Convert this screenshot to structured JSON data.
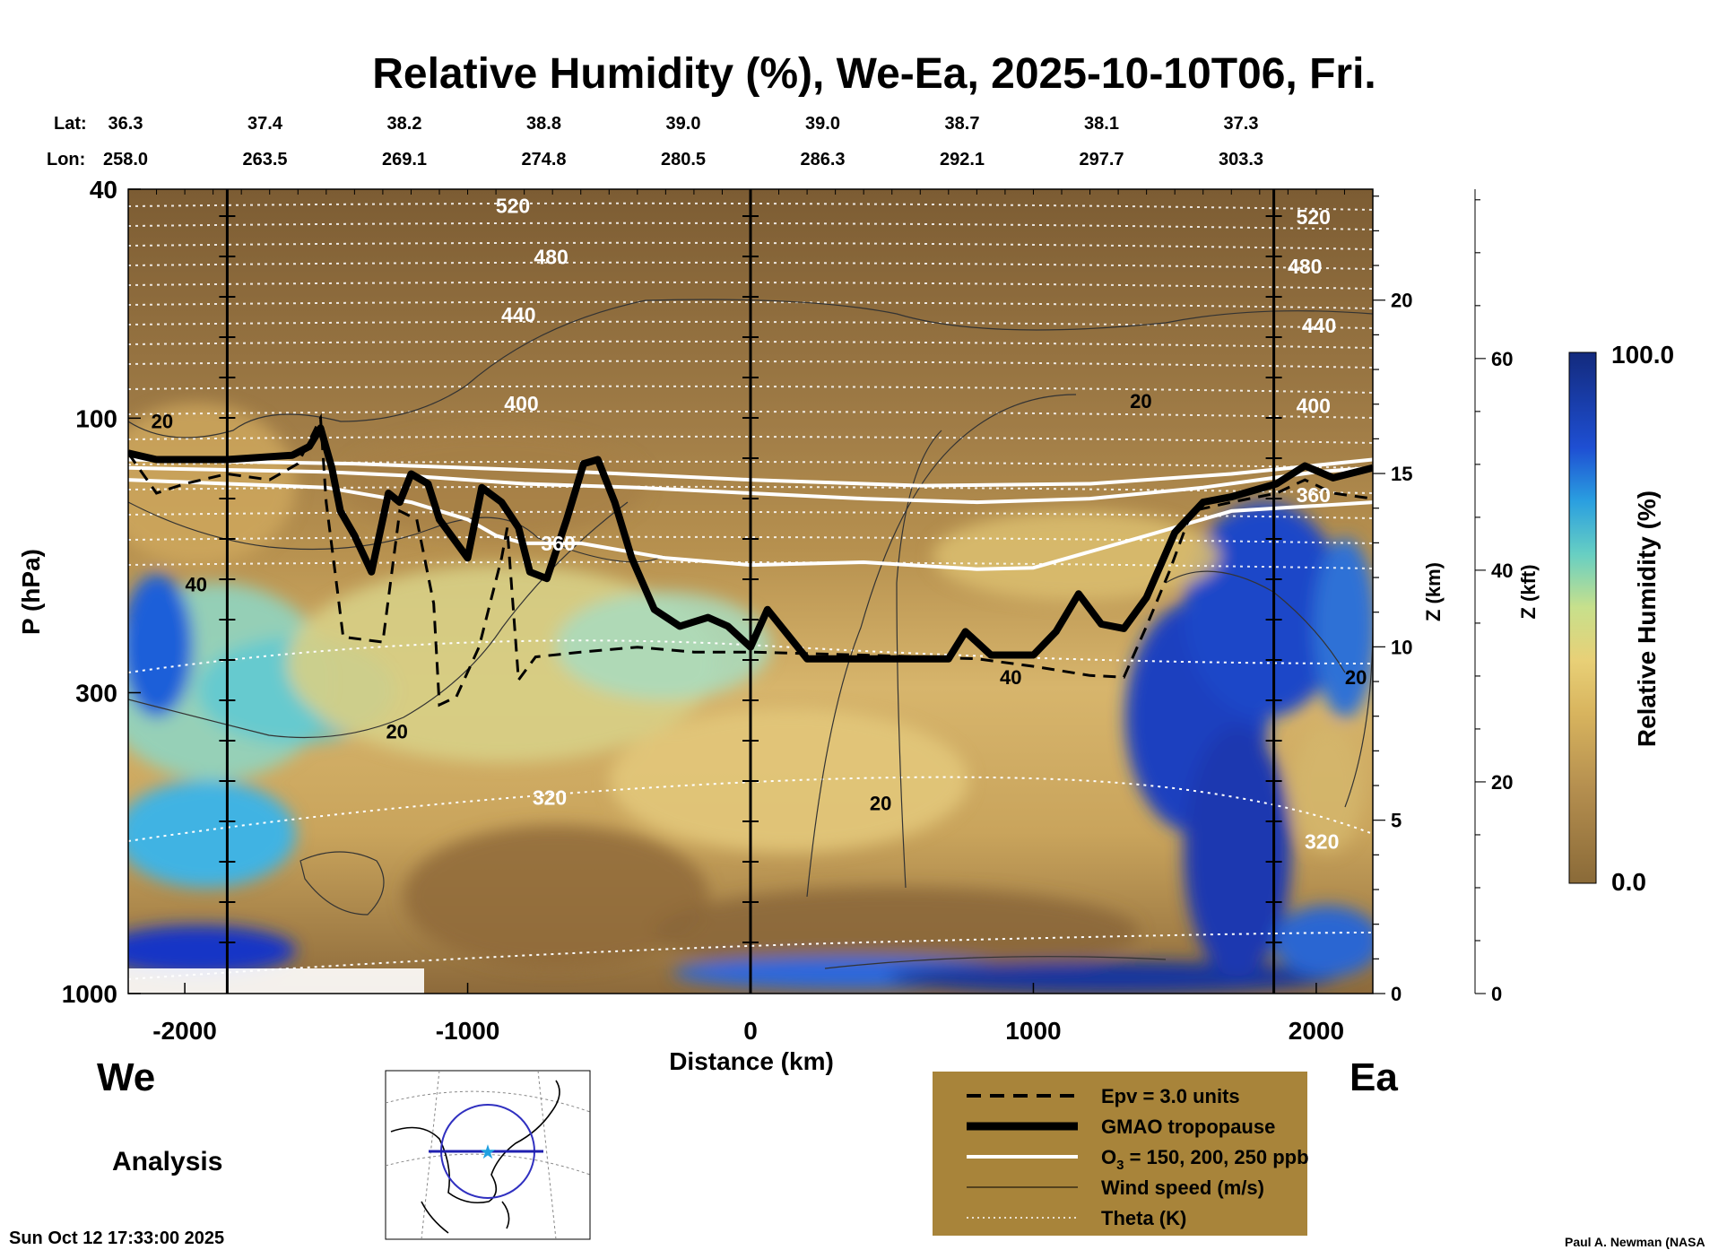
{
  "chart_data": {
    "type": "heatmap",
    "title": "Relative Humidity (%), We-Ea, 2025-10-10T06, Fri.",
    "xlabel": "Distance (km)",
    "ylabel": "P (hPa)",
    "right_axis_1_label": "Z (km)",
    "right_axis_2_label": "Z (kft)",
    "colorbar_label": "Relative Humidity (%)",
    "colorbar_max": "100.0",
    "colorbar_min": "0.0",
    "x_ticks": [
      "-2000",
      "-1000",
      "0",
      "1000",
      "2000"
    ],
    "x_range": [
      -2200,
      2200
    ],
    "y_ticks": [
      "40",
      "100",
      "300",
      "1000"
    ],
    "y_range": [
      1000,
      40
    ],
    "y_scale": "log",
    "z_km_ticks": [
      "0",
      "5",
      "10",
      "15",
      "20"
    ],
    "z_kft_ticks": [
      "0",
      "20",
      "40",
      "60"
    ],
    "lat_label": "Lat:",
    "lon_label": "Lon:",
    "lat_values": [
      "36.3",
      "37.4",
      "38.2",
      "38.8",
      "39.0",
      "39.0",
      "38.7",
      "38.1",
      "37.3"
    ],
    "lon_values": [
      "258.0",
      "263.5",
      "269.1",
      "274.8",
      "280.5",
      "286.3",
      "292.1",
      "297.7",
      "303.3"
    ],
    "vertical_markers_km": [
      -1850,
      0,
      1850
    ],
    "theta_labels": [
      {
        "text": "520",
        "x": -840,
        "p": 44
      },
      {
        "text": "480",
        "x": -705,
        "p": 54
      },
      {
        "text": "440",
        "x": -820,
        "p": 68
      },
      {
        "text": "400",
        "x": -810,
        "p": 97
      },
      {
        "text": "360",
        "x": -680,
        "p": 170
      },
      {
        "text": "320",
        "x": -710,
        "p": 470
      },
      {
        "text": "520",
        "x": 1990,
        "p": 46
      },
      {
        "text": "480",
        "x": 1960,
        "p": 56
      },
      {
        "text": "440",
        "x": 2010,
        "p": 71
      },
      {
        "text": "400",
        "x": 1990,
        "p": 98
      },
      {
        "text": "360",
        "x": 1990,
        "p": 140
      },
      {
        "text": "320",
        "x": 2020,
        "p": 560
      }
    ],
    "wind_labels": [
      {
        "text": "20",
        "x": -2080,
        "p": 104
      },
      {
        "text": "40",
        "x": -1960,
        "p": 200
      },
      {
        "text": "20",
        "x": -1250,
        "p": 360
      },
      {
        "text": "20",
        "x": 1380,
        "p": 96
      },
      {
        "text": "40",
        "x": 920,
        "p": 290
      },
      {
        "text": "20",
        "x": 460,
        "p": 480
      },
      {
        "text": "20",
        "x": 2140,
        "p": 290
      }
    ],
    "tropopause_gmao": [
      [
        -2200,
        115
      ],
      [
        -2100,
        118
      ],
      [
        -1850,
        118
      ],
      [
        -1620,
        116
      ],
      [
        -1560,
        112
      ],
      [
        -1520,
        104
      ],
      [
        -1480,
        122
      ],
      [
        -1450,
        145
      ],
      [
        -1400,
        160
      ],
      [
        -1340,
        185
      ],
      [
        -1280,
        135
      ],
      [
        -1240,
        140
      ],
      [
        -1200,
        125
      ],
      [
        -1140,
        130
      ],
      [
        -1100,
        150
      ],
      [
        -1000,
        175
      ],
      [
        -950,
        132
      ],
      [
        -880,
        140
      ],
      [
        -820,
        155
      ],
      [
        -780,
        185
      ],
      [
        -720,
        190
      ],
      [
        -650,
        150
      ],
      [
        -590,
        120
      ],
      [
        -540,
        118
      ],
      [
        -480,
        140
      ],
      [
        -420,
        175
      ],
      [
        -340,
        215
      ],
      [
        -250,
        230
      ],
      [
        -150,
        222
      ],
      [
        -80,
        230
      ],
      [
        0,
        250
      ],
      [
        60,
        215
      ],
      [
        200,
        262
      ],
      [
        700,
        262
      ],
      [
        760,
        235
      ],
      [
        850,
        258
      ],
      [
        1000,
        258
      ],
      [
        1080,
        235
      ],
      [
        1160,
        202
      ],
      [
        1240,
        228
      ],
      [
        1320,
        232
      ],
      [
        1400,
        205
      ],
      [
        1500,
        158
      ],
      [
        1600,
        140
      ],
      [
        1700,
        137
      ],
      [
        1860,
        130
      ],
      [
        1960,
        121
      ],
      [
        2060,
        127
      ],
      [
        2200,
        122
      ]
    ],
    "epv_3_units": [
      [
        -2200,
        115
      ],
      [
        -2100,
        135
      ],
      [
        -2000,
        130
      ],
      [
        -1850,
        125
      ],
      [
        -1700,
        128
      ],
      [
        -1600,
        120
      ],
      [
        -1520,
        100
      ],
      [
        -1500,
        140
      ],
      [
        -1460,
        200
      ],
      [
        -1440,
        240
      ],
      [
        -1300,
        245
      ],
      [
        -1240,
        145
      ],
      [
        -1180,
        150
      ],
      [
        -1120,
        210
      ],
      [
        -1100,
        315
      ],
      [
        -1040,
        305
      ],
      [
        -960,
        250
      ],
      [
        -880,
        175
      ],
      [
        -860,
        155
      ],
      [
        -820,
        285
      ],
      [
        -760,
        260
      ],
      [
        -600,
        255
      ],
      [
        -400,
        250
      ],
      [
        -200,
        255
      ],
      [
        0,
        255
      ],
      [
        400,
        258
      ],
      [
        800,
        262
      ],
      [
        1000,
        270
      ],
      [
        1200,
        280
      ],
      [
        1320,
        282
      ],
      [
        1400,
        230
      ],
      [
        1480,
        185
      ],
      [
        1560,
        145
      ],
      [
        1700,
        140
      ],
      [
        1860,
        135
      ],
      [
        1960,
        128
      ],
      [
        2060,
        135
      ],
      [
        2200,
        138
      ]
    ],
    "ozone_150_200_250_ppb": [
      [
        [
          -2200,
          128
        ],
        [
          -1850,
          130
        ],
        [
          -1500,
          132
        ],
        [
          -1200,
          140
        ],
        [
          -1000,
          150
        ],
        [
          -900,
          160
        ],
        [
          -800,
          165
        ],
        [
          -600,
          165
        ],
        [
          -300,
          175
        ],
        [
          0,
          180
        ],
        [
          400,
          178
        ],
        [
          800,
          183
        ],
        [
          1000,
          182
        ],
        [
          1400,
          160
        ],
        [
          1700,
          145
        ],
        [
          2200,
          140
        ]
      ],
      [
        [
          -2200,
          122
        ],
        [
          -1850,
          123
        ],
        [
          -1500,
          124
        ],
        [
          -1200,
          126
        ],
        [
          -800,
          130
        ],
        [
          -400,
          132
        ],
        [
          0,
          135
        ],
        [
          400,
          138
        ],
        [
          800,
          140
        ],
        [
          1200,
          138
        ],
        [
          1600,
          132
        ],
        [
          2000,
          124
        ],
        [
          2200,
          122
        ]
      ],
      [
        [
          -2200,
          118
        ],
        [
          -1850,
          119
        ],
        [
          -1400,
          120
        ],
        [
          -1000,
          122
        ],
        [
          -600,
          124
        ],
        [
          0,
          128
        ],
        [
          600,
          131
        ],
        [
          1200,
          130
        ],
        [
          1700,
          125
        ],
        [
          2200,
          118
        ]
      ]
    ],
    "legend": [
      {
        "style": "dashed",
        "label": "Epv = 3.0 units"
      },
      {
        "style": "thick",
        "label": "GMAO tropopause"
      },
      {
        "style": "white",
        "label_main": "O",
        "label_sub": "3",
        "label_rest": " = 150, 200, 250 ppb"
      },
      {
        "style": "thin",
        "label": "Wind speed (m/s)"
      },
      {
        "style": "dotted",
        "label": "Theta (K)"
      }
    ],
    "direction_left": "We",
    "direction_right": "Ea",
    "analysis_label": "Analysis",
    "timestamp": "Sun Oct 12 17:33:00 2025",
    "credit": "Paul A. Newman (NASA",
    "colors": {
      "dry": "#8a6a3a",
      "moist": "#1a2f9e",
      "legend_bg": "#a8843a"
    }
  }
}
